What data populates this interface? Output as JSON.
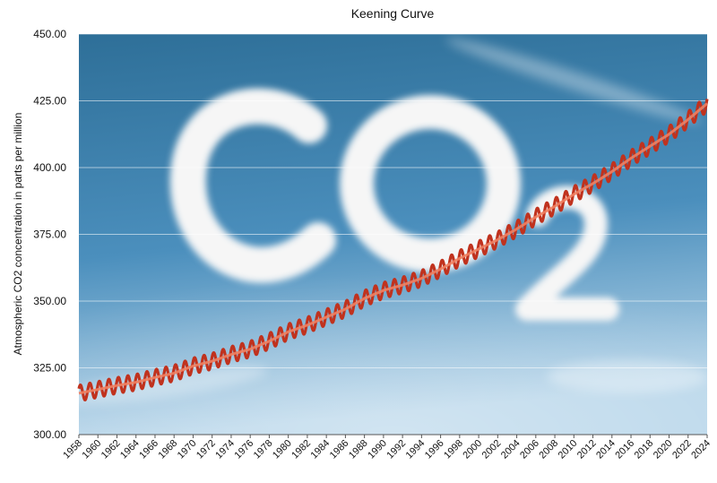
{
  "chart_data": {
    "type": "line",
    "title": "Keening Curve",
    "xlabel": "",
    "ylabel": "Atmospheric CO2 concentration in parts per million",
    "xlim": [
      1958,
      2024
    ],
    "ylim": [
      300,
      450
    ],
    "y_ticks": [
      "300.00",
      "325.00",
      "350.00",
      "375.00",
      "400.00",
      "425.00",
      "450.00"
    ],
    "x_ticks": [
      "1958",
      "1960",
      "1962",
      "1964",
      "1966",
      "1968",
      "1970",
      "1972",
      "1974",
      "1976",
      "1978",
      "1980",
      "1982",
      "1984",
      "1986",
      "1988",
      "1990",
      "1992",
      "1994",
      "1996",
      "1998",
      "2000",
      "2002",
      "2004",
      "2006",
      "2008",
      "2010",
      "2012",
      "2014",
      "2016",
      "2018",
      "2020",
      "2022",
      "2024"
    ],
    "background_text": "CO2",
    "seasonal_amplitude": 3,
    "grid": true,
    "legend": "none",
    "colors": {
      "seasonal": "#c0321e",
      "trend": "#f08060",
      "sky_top": "#2e6f98",
      "sky_bottom": "#b8d6ea",
      "cloud": "#f6f6f6"
    },
    "series": [
      {
        "x": [
          1958,
          1960,
          1962,
          1964,
          1966,
          1968,
          1970,
          1972,
          1974,
          1976,
          1978,
          1980,
          1982,
          1984,
          1986,
          1988,
          1990,
          1992,
          1994,
          1996,
          1998,
          2000,
          2002,
          2004,
          2006,
          2008,
          2010,
          2012,
          2014,
          2016,
          2018,
          2020,
          2022,
          2024
        ],
        "values": [
          315.5,
          316.9,
          318.4,
          319.6,
          321.4,
          323.0,
          325.7,
          327.5,
          330.0,
          332.0,
          335.0,
          338.5,
          341.0,
          344.0,
          347.0,
          351.0,
          354.0,
          356.0,
          358.5,
          362.0,
          366.0,
          369.5,
          373.0,
          377.0,
          381.5,
          385.5,
          390.0,
          394.0,
          398.5,
          403.5,
          408.0,
          412.5,
          418.0,
          424.0
        ]
      }
    ]
  }
}
